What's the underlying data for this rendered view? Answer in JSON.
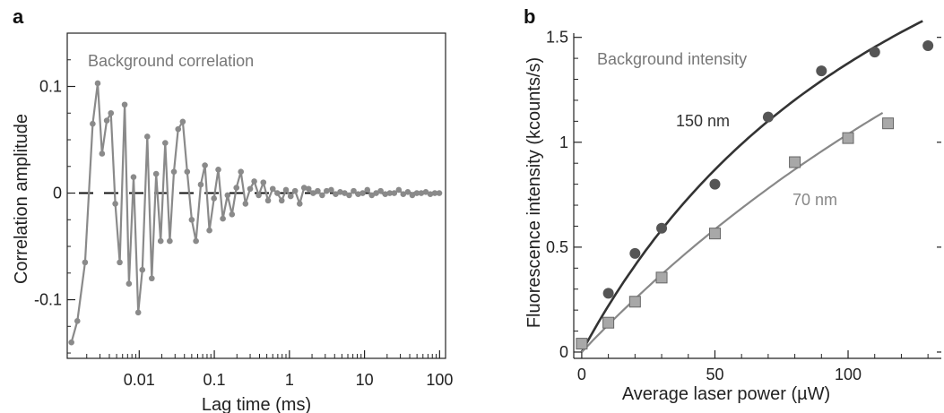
{
  "chart_data": [
    {
      "panel": "a",
      "type": "line",
      "title": "Background correlation",
      "xlabel": "Lag time (ms)",
      "ylabel": "Correlation amplitude",
      "xscale": "log",
      "xlim": [
        0.0011,
        120
      ],
      "ylim": [
        -0.155,
        0.15
      ],
      "xticks": [
        {
          "value": 0.01,
          "label": "0.01"
        },
        {
          "value": 0.1,
          "label": "0.1"
        },
        {
          "value": 1,
          "label": "1"
        },
        {
          "value": 10,
          "label": "10"
        },
        {
          "value": 100,
          "label": "100"
        }
      ],
      "yticks": [
        {
          "value": 0.1,
          "label": "0.1"
        },
        {
          "value": 0,
          "label": "0"
        },
        {
          "value": -0.1,
          "label": "-0.1"
        }
      ],
      "reference_line": {
        "y": 0,
        "style": "dashed"
      },
      "series": [
        {
          "color": "#8a8a8a",
          "x": [
            0.00125,
            0.0015,
            0.0019,
            0.0024,
            0.0028,
            0.0032,
            0.0037,
            0.0042,
            0.0048,
            0.0055,
            0.0064,
            0.0073,
            0.0084,
            0.0097,
            0.011,
            0.0128,
            0.0147,
            0.0168,
            0.0193,
            0.0222,
            0.0255,
            0.029,
            0.033,
            0.038,
            0.0435,
            0.05,
            0.057,
            0.066,
            0.075,
            0.086,
            0.099,
            0.113,
            0.13,
            0.15,
            0.172,
            0.197,
            0.226,
            0.26,
            0.3,
            0.34,
            0.39,
            0.45,
            0.52,
            0.6,
            0.69,
            0.79,
            0.9,
            1.04,
            1.19,
            1.37,
            1.57,
            1.8,
            2.07,
            2.38,
            2.73,
            3.13,
            3.6,
            4.13,
            4.74,
            5.44,
            6.24,
            7.17,
            8.23,
            9.45,
            10.9,
            12.5,
            14.3,
            16.4,
            18.9,
            21.7,
            24.9,
            28.6,
            32.8,
            37.7,
            43.3,
            49.7,
            57,
            65.5,
            75.2,
            86.3,
            99
          ],
          "y": [
            -0.14,
            -0.12,
            -0.065,
            0.065,
            0.103,
            0.037,
            0.068,
            0.075,
            -0.01,
            -0.065,
            0.083,
            -0.085,
            0.015,
            -0.112,
            -0.072,
            0.053,
            -0.08,
            0.018,
            -0.045,
            0.047,
            -0.045,
            0.02,
            0.06,
            0.067,
            0.02,
            -0.025,
            -0.045,
            0.008,
            0.026,
            -0.035,
            -0.005,
            0.022,
            -0.024,
            -0.002,
            -0.02,
            0.005,
            0.02,
            -0.01,
            0.004,
            0.011,
            -0.002,
            0.01,
            -0.007,
            0.004,
            0.0,
            -0.007,
            0.003,
            -0.003,
            0.002,
            -0.01,
            0.005,
            0.004,
            0.0,
            0.002,
            -0.002,
            0.002,
            0.003,
            -0.001,
            0.001,
            0.0,
            -0.002,
            0.002,
            -0.001,
            0.0,
            0.003,
            -0.002,
            0.0,
            0.002,
            -0.001,
            0.0,
            0.0,
            0.003,
            -0.001,
            0.001,
            -0.002,
            0.0,
            0.0,
            0.001,
            -0.001,
            0.0,
            0.0
          ]
        }
      ]
    },
    {
      "panel": "b",
      "type": "scatter",
      "title": "Background intensity",
      "xlabel": "Average laser power (µW)",
      "ylabel": "Fluorescence intensity (kcounts/s)",
      "xlim": [
        -3,
        135
      ],
      "ylim": [
        -0.03,
        1.52
      ],
      "xticks": [
        {
          "value": 0,
          "label": "0"
        },
        {
          "value": 50,
          "label": "50"
        },
        {
          "value": 100,
          "label": "100"
        }
      ],
      "yticks": [
        {
          "value": 0,
          "label": "0"
        },
        {
          "value": 0.5,
          "label": "0.5"
        },
        {
          "value": 1,
          "label": "1"
        },
        {
          "value": 1.5,
          "label": "1.5"
        }
      ],
      "series": [
        {
          "name": "150 nm",
          "marker": "circle",
          "color": "#555555",
          "fit_color": "#333333",
          "x": [
            10,
            20,
            30,
            50,
            70,
            90,
            110,
            130
          ],
          "y": [
            0.28,
            0.47,
            0.59,
            0.8,
            1.12,
            1.34,
            1.43,
            1.46
          ],
          "fit": {
            "form": "a*x/(1+x/b)",
            "a": 0.0236,
            "b": 140
          }
        },
        {
          "name": "70 nm",
          "marker": "square",
          "color": "#a8a8a8",
          "fit_color": "#888888",
          "x": [
            0,
            10,
            20,
            30,
            50,
            80,
            100,
            115
          ],
          "y": [
            0.04,
            0.14,
            0.24,
            0.355,
            0.565,
            0.905,
            1.02,
            1.09
          ],
          "fit": {
            "form": "a*x/(1+x/b)",
            "a": 0.0134,
            "b": 345
          }
        }
      ]
    }
  ],
  "labels": {
    "panel_a_letter": "a",
    "panel_b_letter": "b"
  },
  "colors": {
    "axis": "#222222",
    "panel_a_line": "#8a8a8a",
    "zero_dash": "#111111",
    "series_150_marker": "#555555",
    "series_70_marker": "#a8a8a8"
  }
}
